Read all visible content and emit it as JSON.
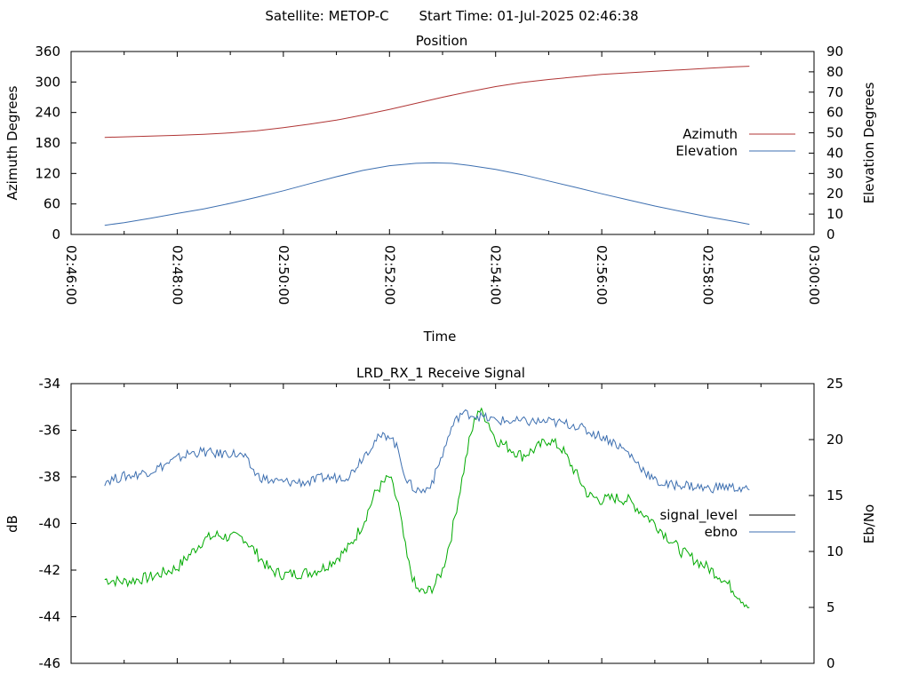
{
  "header": {
    "satellite_label": "Satellite: METOP-C",
    "start_label": "Start Time: 01-Jul-2025 02:46:38"
  },
  "chart_data": [
    {
      "type": "line",
      "title": "Position",
      "xlabel": "Time",
      "ylabel": "Azimuth Degrees",
      "y2label": "Elevation Degrees",
      "xlim": [
        "02:46:00",
        "03:00:00"
      ],
      "ylim": [
        0,
        360
      ],
      "y2lim": [
        0,
        90
      ],
      "x_ticks": [
        "02:46:00",
        "02:48:00",
        "02:50:00",
        "02:52:00",
        "02:54:00",
        "02:56:00",
        "02:58:00",
        "03:00:00"
      ],
      "y_ticks": [
        "0",
        "60",
        "120",
        "180",
        "240",
        "300",
        "360"
      ],
      "y2_ticks": [
        "0",
        "10",
        "20",
        "30",
        "40",
        "50",
        "60",
        "70",
        "80",
        "90"
      ],
      "legend_position": "right",
      "series": [
        {
          "name": "Azimuth",
          "axis": "y",
          "color": "#b03535",
          "points": [
            [
              "02:46:38",
              191
            ],
            [
              "02:47:00",
              192
            ],
            [
              "02:47:30",
              193.5
            ],
            [
              "02:48:00",
              195
            ],
            [
              "02:48:30",
              197
            ],
            [
              "02:49:00",
              200
            ],
            [
              "02:49:30",
              204
            ],
            [
              "02:50:00",
              210
            ],
            [
              "02:50:30",
              217
            ],
            [
              "02:51:00",
              225
            ],
            [
              "02:51:30",
              235
            ],
            [
              "02:52:00",
              246
            ],
            [
              "02:52:30",
              258
            ],
            [
              "02:53:00",
              270
            ],
            [
              "02:53:30",
              281
            ],
            [
              "02:54:00",
              291
            ],
            [
              "02:54:30",
              299
            ],
            [
              "02:55:00",
              305
            ],
            [
              "02:55:30",
              310
            ],
            [
              "02:56:00",
              315
            ],
            [
              "02:56:30",
              318
            ],
            [
              "02:57:00",
              321
            ],
            [
              "02:57:30",
              324
            ],
            [
              "02:58:00",
              327
            ],
            [
              "02:58:30",
              330
            ],
            [
              "02:58:47",
              331
            ]
          ]
        },
        {
          "name": "Elevation",
          "axis": "y2",
          "color": "#3d6fb0",
          "points": [
            [
              "02:46:38",
              4.5
            ],
            [
              "02:47:00",
              5.8
            ],
            [
              "02:47:30",
              8.0
            ],
            [
              "02:48:00",
              10.3
            ],
            [
              "02:48:30",
              12.6
            ],
            [
              "02:49:00",
              15.3
            ],
            [
              "02:49:30",
              18.3
            ],
            [
              "02:50:00",
              21.5
            ],
            [
              "02:50:30",
              25.0
            ],
            [
              "02:51:00",
              28.4
            ],
            [
              "02:51:30",
              31.5
            ],
            [
              "02:52:00",
              33.8
            ],
            [
              "02:52:30",
              35.0
            ],
            [
              "02:52:50",
              35.2
            ],
            [
              "02:53:10",
              35.0
            ],
            [
              "02:53:30",
              34.0
            ],
            [
              "02:54:00",
              32.0
            ],
            [
              "02:54:30",
              29.4
            ],
            [
              "02:55:00",
              26.3
            ],
            [
              "02:55:30",
              23.2
            ],
            [
              "02:56:00",
              20.0
            ],
            [
              "02:56:30",
              17.0
            ],
            [
              "02:57:00",
              14.0
            ],
            [
              "02:57:30",
              11.3
            ],
            [
              "02:58:00",
              8.7
            ],
            [
              "02:58:30",
              6.4
            ],
            [
              "02:58:47",
              5.0
            ]
          ]
        }
      ]
    },
    {
      "type": "line",
      "title": "LRD_RX_1 Receive Signal",
      "xlabel": "",
      "ylabel": "dB",
      "y2label": "Eb/No",
      "xlim": [
        "02:46:00",
        "03:00:00"
      ],
      "ylim": [
        -46,
        -34
      ],
      "y2lim": [
        0,
        25
      ],
      "y_ticks": [
        "-46",
        "-44",
        "-42",
        "-40",
        "-38",
        "-36",
        "-34"
      ],
      "y2_ticks": [
        "0",
        "5",
        "10",
        "15",
        "20",
        "25"
      ],
      "legend_position": "right",
      "series": [
        {
          "name": "signal_level",
          "legend_color": "#000000",
          "color": "#00aa00",
          "axis": "y",
          "noise": 0.25,
          "points": [
            [
              "02:46:38",
              -42.4
            ],
            [
              "02:47:00",
              -42.5
            ],
            [
              "02:47:30",
              -42.3
            ],
            [
              "02:48:00",
              -41.9
            ],
            [
              "02:48:15",
              -41.3
            ],
            [
              "02:48:30",
              -40.7
            ],
            [
              "02:48:45",
              -40.5
            ],
            [
              "02:49:00",
              -40.6
            ],
            [
              "02:49:15",
              -40.6
            ],
            [
              "02:49:30",
              -41.3
            ],
            [
              "02:49:45",
              -42.0
            ],
            [
              "02:50:00",
              -42.2
            ],
            [
              "02:50:30",
              -42.1
            ],
            [
              "02:50:45",
              -41.9
            ],
            [
              "02:51:00",
              -41.5
            ],
            [
              "02:51:15",
              -41.0
            ],
            [
              "02:51:30",
              -40.0
            ],
            [
              "02:51:45",
              -38.6
            ],
            [
              "02:52:00",
              -38.0
            ],
            [
              "02:52:10",
              -39.2
            ],
            [
              "02:52:20",
              -41.5
            ],
            [
              "02:52:30",
              -42.8
            ],
            [
              "02:52:40",
              -43.0
            ],
            [
              "02:52:50",
              -42.7
            ],
            [
              "02:53:00",
              -42.0
            ],
            [
              "02:53:10",
              -40.5
            ],
            [
              "02:53:20",
              -38.5
            ],
            [
              "02:53:30",
              -36.5
            ],
            [
              "02:53:40",
              -35.1
            ],
            [
              "02:53:50",
              -35.5
            ],
            [
              "02:54:00",
              -36.4
            ],
            [
              "02:54:30",
              -37.1
            ],
            [
              "02:54:45",
              -36.8
            ],
            [
              "02:55:00",
              -36.4
            ],
            [
              "02:55:15",
              -36.8
            ],
            [
              "02:55:30",
              -37.8
            ],
            [
              "02:55:45",
              -38.8
            ],
            [
              "02:56:00",
              -39.0
            ],
            [
              "02:56:15",
              -38.9
            ],
            [
              "02:56:30",
              -39.0
            ],
            [
              "02:57:00",
              -40.0
            ],
            [
              "02:57:30",
              -41.2
            ],
            [
              "02:58:00",
              -41.9
            ],
            [
              "02:58:15",
              -42.3
            ],
            [
              "02:58:30",
              -42.9
            ],
            [
              "02:58:47",
              -43.6
            ]
          ]
        },
        {
          "name": "ebno",
          "color": "#3d6fb0",
          "axis": "y2",
          "noise": 0.45,
          "points": [
            [
              "02:46:38",
              16.3
            ],
            [
              "02:47:00",
              16.7
            ],
            [
              "02:47:15",
              16.9
            ],
            [
              "02:47:30",
              17.2
            ],
            [
              "02:47:45",
              17.7
            ],
            [
              "02:48:00",
              18.3
            ],
            [
              "02:48:15",
              18.8
            ],
            [
              "02:48:30",
              18.9
            ],
            [
              "02:48:45",
              18.7
            ],
            [
              "02:49:00",
              18.8
            ],
            [
              "02:49:15",
              18.5
            ],
            [
              "02:49:30",
              16.8
            ],
            [
              "02:49:45",
              16.3
            ],
            [
              "02:50:00",
              16.2
            ],
            [
              "02:50:30",
              16.2
            ],
            [
              "02:50:45",
              16.6
            ],
            [
              "02:51:00",
              16.6
            ],
            [
              "02:51:15",
              16.8
            ],
            [
              "02:51:30",
              18.5
            ],
            [
              "02:51:45",
              20.0
            ],
            [
              "02:52:00",
              20.5
            ],
            [
              "02:52:10",
              19.0
            ],
            [
              "02:52:20",
              16.2
            ],
            [
              "02:52:30",
              15.5
            ],
            [
              "02:52:40",
              15.4
            ],
            [
              "02:52:50",
              16.5
            ],
            [
              "02:53:00",
              18.7
            ],
            [
              "02:53:10",
              21.0
            ],
            [
              "02:53:20",
              22.3
            ],
            [
              "02:53:30",
              22.3
            ],
            [
              "02:53:45",
              22.0
            ],
            [
              "02:54:00",
              21.7
            ],
            [
              "02:54:30",
              21.6
            ],
            [
              "02:55:00",
              21.6
            ],
            [
              "02:55:30",
              21.3
            ],
            [
              "02:55:45",
              20.7
            ],
            [
              "02:56:00",
              20.3
            ],
            [
              "02:56:15",
              19.7
            ],
            [
              "02:56:30",
              18.8
            ],
            [
              "02:56:45",
              17.5
            ],
            [
              "02:57:00",
              16.3
            ],
            [
              "02:57:15",
              15.9
            ],
            [
              "02:57:30",
              16.0
            ],
            [
              "02:57:45",
              15.8
            ],
            [
              "02:58:00",
              15.6
            ],
            [
              "02:58:15",
              15.8
            ],
            [
              "02:58:30",
              15.7
            ],
            [
              "02:58:47",
              15.5
            ]
          ]
        }
      ]
    }
  ]
}
